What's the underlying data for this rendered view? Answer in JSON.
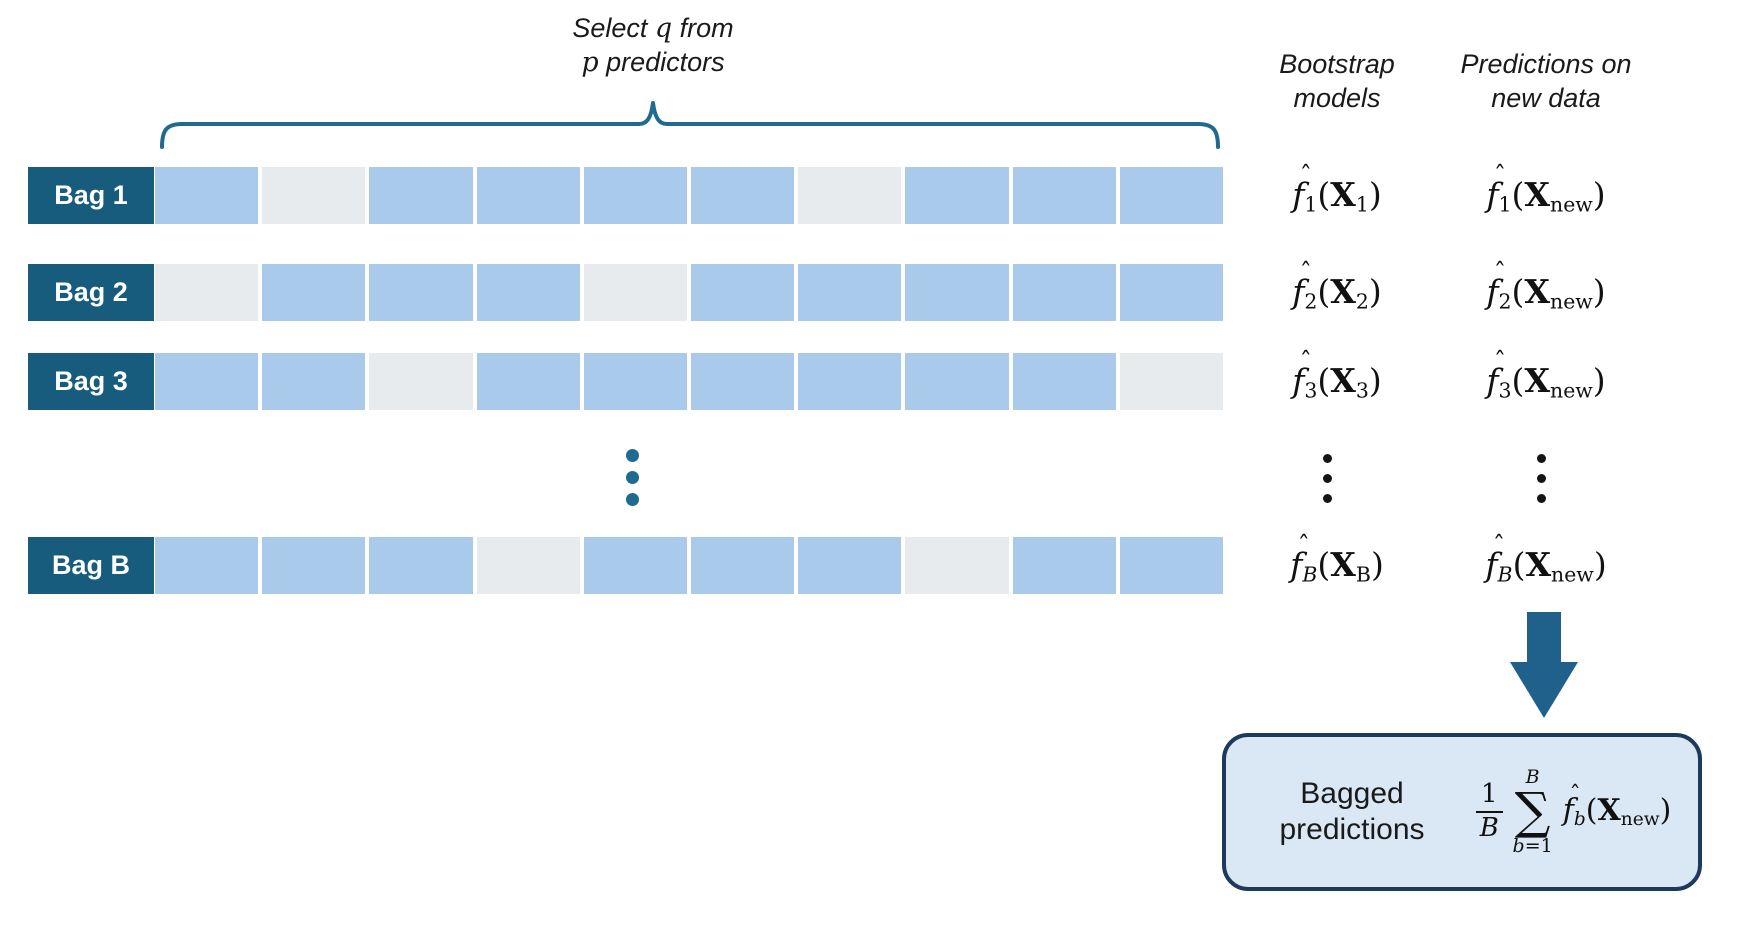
{
  "title": {
    "pre1": "Select ",
    "var1": "q",
    "post1": " from",
    "var2": "p",
    "post2": " predictors"
  },
  "headers": {
    "bootstrap": {
      "line1": "Bootstrap",
      "line2": "models"
    },
    "predictions": {
      "line1": "Predictions on",
      "line2": "new data"
    }
  },
  "math": {
    "f": "f",
    "X": "X",
    "hat": "ˆ",
    "lparen": "(",
    "rparen": ")"
  },
  "rows": [
    {
      "label": "Bag 1",
      "segments": [
        1,
        0,
        1,
        1,
        1,
        1,
        0,
        1,
        1,
        1
      ],
      "model": {
        "f_sub": "1",
        "x_sub": "1"
      },
      "prediction": {
        "f_sub": "1",
        "x_sub": "new"
      }
    },
    {
      "label": "Bag 2",
      "segments": [
        0,
        1,
        1,
        1,
        0,
        1,
        1,
        1,
        1,
        1
      ],
      "model": {
        "f_sub": "2",
        "x_sub": "2"
      },
      "prediction": {
        "f_sub": "2",
        "x_sub": "new"
      }
    },
    {
      "label": "Bag 3",
      "segments": [
        1,
        1,
        0,
        1,
        1,
        1,
        1,
        1,
        1,
        0
      ],
      "model": {
        "f_sub": "3",
        "x_sub": "3"
      },
      "prediction": {
        "f_sub": "3",
        "x_sub": "new"
      }
    },
    {
      "label": "Bag B",
      "segments": [
        1,
        1,
        1,
        0,
        1,
        1,
        1,
        0,
        1,
        1
      ],
      "model": {
        "f_sub": "B",
        "x_sub": "B"
      },
      "prediction": {
        "f_sub": "B",
        "x_sub": "new"
      }
    }
  ],
  "summary": {
    "label_line1": "Bagged",
    "label_line2": "predictions",
    "formula": {
      "frac_num": "1",
      "frac_den": "B",
      "sum_sup": "B",
      "sigma": "∑",
      "sum_var": "b",
      "sum_eq": "=1",
      "f": "f",
      "f_sub": "b",
      "x": "X",
      "x_sub": "new",
      "lparen": "(",
      "rparen": ")"
    }
  },
  "colors": {
    "label_bg": "#175c7d",
    "segment_selected": "#a9caea",
    "segment_unselected": "#e8ebee",
    "brace": "#1f6a8e",
    "ellipsis_teal": "#1e6b8f",
    "ellipsis_black": "#141414",
    "arrow": "#1f618a",
    "box_fill": "#dae8f5",
    "box_border": "#1d3a5e",
    "text": "#1a1a1a"
  }
}
